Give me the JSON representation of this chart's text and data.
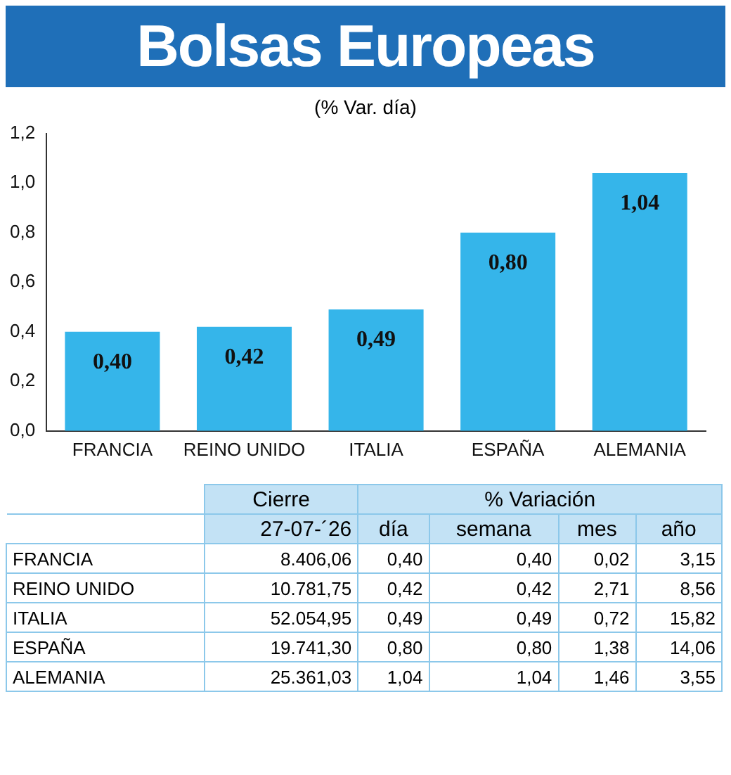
{
  "chart_data": [
    {
      "type": "bar",
      "title": "Bolsas Europeas",
      "subtitle": "(% Var. día)",
      "categories": [
        "FRANCIA",
        "REINO UNIDO",
        "ITALIA",
        "ESPAÑA",
        "ALEMANIA"
      ],
      "values": [
        0.4,
        0.42,
        0.49,
        0.8,
        1.04
      ],
      "value_labels": [
        "0,40",
        "0,42",
        "0,49",
        "0,80",
        "1,04"
      ],
      "color": "#35b5ea",
      "ylim": [
        0,
        1.2
      ],
      "yticks": [
        {
          "value": 0,
          "label": "0,0"
        },
        {
          "value": 0.2,
          "label": "0,2"
        },
        {
          "value": 0.4,
          "label": "0,4"
        },
        {
          "value": 0.6,
          "label": "0,6"
        },
        {
          "value": 0.8,
          "label": "0,8"
        },
        {
          "value": 1.0,
          "label": "1,0"
        },
        {
          "value": 1.2,
          "label": "1,2"
        }
      ],
      "grid": false,
      "legend": false
    },
    {
      "type": "other",
      "annotations": [
        "Cierre",
        "% Variación"
      ],
      "categories": [
        "27-07-´26",
        "día",
        "semana",
        "mes",
        "año"
      ],
      "y_categories": [
        "FRANCIA",
        "REINO UNIDO",
        "ITALIA",
        "ESPAÑA",
        "ALEMANIA"
      ],
      "cell_labels": [
        [
          "8.406,06",
          "0,40",
          "0,40",
          "0,02",
          "3,15"
        ],
        [
          "10.781,75",
          "0,42",
          "0,42",
          "2,71",
          "8,56"
        ],
        [
          "52.054,95",
          "0,49",
          "0,49",
          "0,72",
          "15,82"
        ],
        [
          "19.741,30",
          "0,80",
          "0,80",
          "1,38",
          "14,06"
        ],
        [
          "25.361,03",
          "1,04",
          "1,04",
          "1,46",
          "3,55"
        ]
      ]
    }
  ]
}
